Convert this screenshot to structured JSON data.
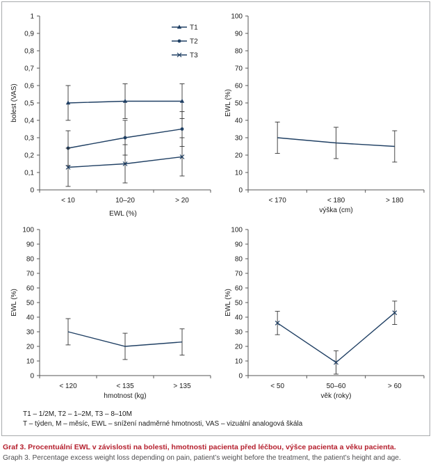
{
  "chart_data": [
    {
      "type": "line",
      "title": "",
      "xlabel": "EWL (%)",
      "ylabel": "bolest (VAS)",
      "categories": [
        "< 10",
        "10–20",
        "> 20"
      ],
      "ylim": [
        0,
        1
      ],
      "yticks": [
        "0",
        "0,1",
        "0,2",
        "0,3",
        "0,4",
        "0,5",
        "0,6",
        "0,7",
        "0,8",
        "0,9",
        "1"
      ],
      "legend": "top-right",
      "series": [
        {
          "name": "T1",
          "marker": "triangle",
          "values": [
            0.5,
            0.51,
            0.51
          ],
          "errors": [
            0.1,
            0.1,
            0.1
          ]
        },
        {
          "name": "T2",
          "marker": "circle",
          "values": [
            0.24,
            0.3,
            0.35
          ],
          "errors": [
            0.1,
            0.1,
            0.1
          ]
        },
        {
          "name": "T3",
          "marker": "x",
          "values": [
            0.13,
            0.15,
            0.19
          ],
          "errors": [
            0.11,
            0.11,
            0.11
          ]
        }
      ]
    },
    {
      "type": "line",
      "title": "",
      "xlabel": "výška (cm)",
      "ylabel": "EWL (%)",
      "categories": [
        "< 170",
        "< 180",
        "> 180"
      ],
      "ylim": [
        0,
        100
      ],
      "yticks": [
        "0",
        "10",
        "20",
        "30",
        "40",
        "50",
        "60",
        "70",
        "80",
        "90",
        "100"
      ],
      "series": [
        {
          "marker": "none",
          "values": [
            30,
            27,
            25
          ],
          "errors": [
            9,
            9,
            9
          ]
        }
      ]
    },
    {
      "type": "line",
      "title": "",
      "xlabel": "hmotnost (kg)",
      "ylabel": "EWL (%)",
      "categories": [
        "< 120",
        "< 135",
        "> 135"
      ],
      "ylim": [
        0,
        100
      ],
      "yticks": [
        "0",
        "10",
        "20",
        "30",
        "40",
        "50",
        "60",
        "70",
        "80",
        "90",
        "100"
      ],
      "series": [
        {
          "marker": "none",
          "values": [
            30,
            20,
            23
          ],
          "errors": [
            9,
            9,
            9
          ]
        }
      ]
    },
    {
      "type": "line",
      "title": "",
      "xlabel": "věk (roky)",
      "ylabel": "EWL (%)",
      "categories": [
        "< 50",
        "50–60",
        "> 60"
      ],
      "ylim": [
        0,
        100
      ],
      "yticks": [
        "0",
        "10",
        "20",
        "30",
        "40",
        "50",
        "60",
        "70",
        "80",
        "90",
        "100"
      ],
      "series": [
        {
          "marker": "x",
          "values": [
            36,
            9,
            43
          ],
          "errors": [
            8,
            8,
            8
          ]
        }
      ]
    }
  ],
  "notes": {
    "line1": "T1 – 1/2M, T2 – 1–2M, T3 – 8–10M",
    "line2": "T – týden, M – měsíc, EWL – snížení nadměrné hmotnosti, VAS – vizuální analogová škála"
  },
  "caption": {
    "czech": "Graf 3. Procentuální EWL v závislosti na bolesti, hmotnosti pacienta před léčbou, výšce pacienta a věku pacienta.",
    "english": "Graph 3. Percentage excess weight loss depending on pain, patient’s weight before the treatment, the patient’s height and age."
  },
  "colors": {
    "line": "#1f3f63",
    "axis": "#555555",
    "caption_red": "#b5202e",
    "caption_grey": "#4d4d4f"
  }
}
